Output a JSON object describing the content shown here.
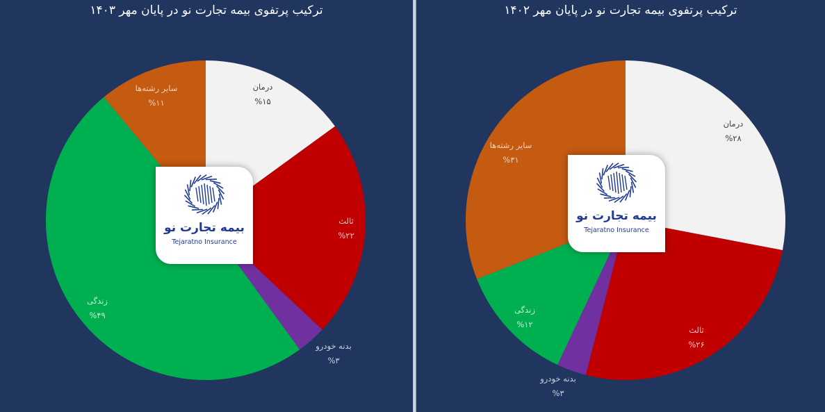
{
  "colors": {
    "background": "#20365f",
    "darman": "#f2f2f2",
    "salis": "#c00000",
    "badaneh": "#7030a0",
    "zendegi": "#00b050",
    "sayer": "#c55a11",
    "logo_blue": "#1f3a8f"
  },
  "logo": {
    "fa": "بیمه تجارت نو",
    "en": "Tejaratno Insurance"
  },
  "chart_data": [
    {
      "type": "pie",
      "title": "ترکیب پرتفوی بیمه تجارت نو در پایان مهر ۱۴۰۳",
      "categories": [
        "درمان",
        "ثالث",
        "بدنه خودرو",
        "زندگی",
        "سایر رشته‌ها"
      ],
      "values": [
        15,
        22,
        3,
        49,
        11
      ],
      "value_labels": [
        "%۱۵",
        "%۲۲",
        "%۳",
        "%۴۹",
        "%۱۱"
      ],
      "start_angle": "12 o'clock",
      "direction": "clockwise",
      "legend": "none (data labels on slices)"
    },
    {
      "type": "pie",
      "title": "ترکیب پرتفوی بیمه تجارت نو در پایان مهر ۱۴۰۲",
      "categories": [
        "درمان",
        "ثالث",
        "بدنه خودرو",
        "زندگی",
        "سایر رشته‌ها"
      ],
      "values": [
        28,
        26,
        3,
        12,
        31
      ],
      "value_labels": [
        "%۲۸",
        "%۲۶",
        "%۳",
        "%۱۲",
        "%۳۱"
      ],
      "start_angle": "12 o'clock",
      "direction": "clockwise",
      "legend": "none (data labels on slices)"
    }
  ],
  "left": {
    "title": "ترکیب پرتفوی بیمه تجارت نو در پایان مهر ۱۴۰۳",
    "labels": [
      {
        "name": "درمان",
        "pct": "%۱۵"
      },
      {
        "name": "ثالث",
        "pct": "%۲۲"
      },
      {
        "name": "بدنه خودرو",
        "pct": "%۳"
      },
      {
        "name": "زندگی",
        "pct": "%۴۹"
      },
      {
        "name": "سایر رشته‌ها",
        "pct": "%۱۱"
      }
    ]
  },
  "right": {
    "title": "ترکیب پرتفوی بیمه تجارت نو در پایان مهر ۱۴۰۲",
    "labels": [
      {
        "name": "درمان",
        "pct": "%۲۸"
      },
      {
        "name": "ثالث",
        "pct": "%۲۶"
      },
      {
        "name": "بدنه خودرو",
        "pct": "%۳"
      },
      {
        "name": "زندگی",
        "pct": "%۱۲"
      },
      {
        "name": "سایر رشته‌ها",
        "pct": "%۳۱"
      }
    ]
  }
}
